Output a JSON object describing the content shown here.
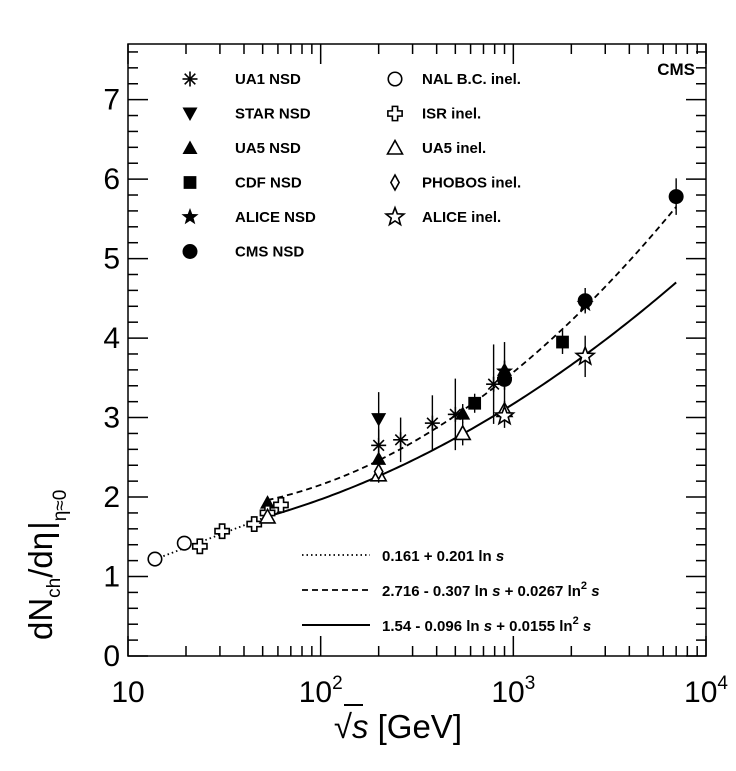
{
  "chart_data": {
    "type": "scatter",
    "experiment_tag": "CMS",
    "x_scale": "log",
    "xlim": [
      10,
      10000
    ],
    "ylim": [
      0,
      7.7
    ],
    "x_ticks": [
      {
        "value": 10,
        "base": "10",
        "exp": ""
      },
      {
        "value": 100,
        "base": "10",
        "exp": "2"
      },
      {
        "value": 1000,
        "base": "10",
        "exp": "3"
      },
      {
        "value": 10000,
        "base": "10",
        "exp": "4"
      }
    ],
    "y_ticks": [
      "0",
      "1",
      "2",
      "3",
      "4",
      "5",
      "6",
      "7"
    ],
    "xlabel": {
      "sqrt": "√",
      "var": "s",
      "unit": " [GeV]"
    },
    "ylabel": {
      "main_a": "dN",
      "sub_a": "ch",
      "main_b": "/dη",
      "sub_b": "η≈0"
    },
    "series": [
      {
        "name": "UA1 NSD",
        "marker": "asterisk",
        "points": [
          [
            200,
            2.65,
            0.2
          ],
          [
            260,
            2.72,
            0.28
          ],
          [
            380,
            2.93,
            0.35
          ],
          [
            500,
            3.04,
            0.45
          ],
          [
            790,
            3.42,
            0.5
          ],
          [
            900,
            3.5,
            0.45
          ]
        ]
      },
      {
        "name": "STAR NSD",
        "marker": "triangle-down",
        "points": [
          [
            200,
            2.98,
            0.34
          ]
        ]
      },
      {
        "name": "UA5 NSD",
        "marker": "triangle-up",
        "points": [
          [
            53,
            1.93,
            0.05
          ],
          [
            200,
            2.48,
            0.1
          ],
          [
            546,
            3.05,
            0.12
          ],
          [
            900,
            3.6,
            0.12
          ]
        ]
      },
      {
        "name": "CDF NSD",
        "marker": "square",
        "points": [
          [
            630,
            3.18,
            0.12
          ],
          [
            1800,
            3.95,
            0.15
          ]
        ]
      },
      {
        "name": "ALICE NSD",
        "marker": "star",
        "points": [
          [
            900,
            3.58,
            0.13
          ],
          [
            2360,
            4.43,
            0.1
          ]
        ]
      },
      {
        "name": "CMS NSD",
        "marker": "circle",
        "points": [
          [
            900,
            3.48,
            0.13
          ],
          [
            2360,
            4.47,
            0.16
          ],
          [
            7000,
            5.78,
            0.23
          ]
        ]
      },
      {
        "name": "NAL B.C. inel.",
        "marker": "open-circle",
        "points": [
          [
            13.8,
            1.22,
            0.03
          ],
          [
            19.6,
            1.42,
            0.03
          ]
        ]
      },
      {
        "name": "ISR inel.",
        "marker": "open-cross",
        "points": [
          [
            23.6,
            1.38,
            0.03
          ],
          [
            30.8,
            1.57,
            0.03
          ],
          [
            45.2,
            1.66,
            0.03
          ],
          [
            53,
            1.8,
            0.03
          ],
          [
            62.2,
            1.9,
            0.03
          ]
        ]
      },
      {
        "name": "UA5 inel.",
        "marker": "open-triangle",
        "points": [
          [
            53,
            1.75,
            0.05
          ],
          [
            200,
            2.28,
            0.1
          ],
          [
            546,
            2.8,
            0.15
          ],
          [
            900,
            3.09,
            0.12
          ]
        ]
      },
      {
        "name": "PHOBOS inel.",
        "marker": "open-diamond",
        "points": [
          [
            200,
            2.32,
            0.05
          ]
        ]
      },
      {
        "name": "ALICE inel.",
        "marker": "open-star",
        "points": [
          [
            900,
            3.02,
            0.15
          ],
          [
            2360,
            3.77,
            0.26
          ]
        ]
      }
    ],
    "fits": [
      {
        "label_a": "0.161 + 0.201 ln ",
        "var": "s",
        "label_b": "",
        "sq": "",
        "label_c": "",
        "style": "dotted",
        "coeffs": [
          0.161,
          0.201,
          0
        ],
        "x_range": [
          13.8,
          62.2
        ]
      },
      {
        "label_a": "2.716 - 0.307 ln ",
        "var": "s",
        "label_b": " + 0.0267 ln",
        "sq": "2",
        "label_c": " s",
        "style": "dashed",
        "coeffs": [
          2.716,
          -0.307,
          0.0267
        ],
        "x_range": [
          53,
          7000
        ]
      },
      {
        "label_a": "1.54 - 0.096 ln ",
        "var": "s",
        "label_b": " + 0.0155 ln",
        "sq": "2",
        "label_c": " s",
        "style": "solid",
        "coeffs": [
          1.54,
          -0.096,
          0.0155
        ],
        "x_range": [
          53,
          7000
        ]
      }
    ]
  }
}
